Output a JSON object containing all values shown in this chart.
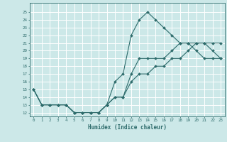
{
  "xlabel": "Humidex (Indice chaleur)",
  "bg_color": "#cce8e8",
  "grid_color": "#ffffff",
  "line_color": "#2d6b6b",
  "hours": [
    0,
    1,
    2,
    3,
    4,
    5,
    6,
    7,
    8,
    9,
    10,
    11,
    12,
    13,
    14,
    15,
    16,
    17,
    18,
    19,
    20,
    21,
    22,
    23
  ],
  "line1": [
    15,
    13,
    13,
    13,
    13,
    12,
    12,
    12,
    12,
    13,
    16,
    17,
    22,
    24,
    25,
    24,
    23,
    22,
    21,
    21,
    20,
    19,
    19,
    19
  ],
  "line2": [
    15,
    13,
    13,
    13,
    13,
    12,
    12,
    12,
    12,
    13,
    14,
    14,
    17,
    19,
    19,
    19,
    19,
    20,
    21,
    21,
    21,
    21,
    21,
    21
  ],
  "line3": [
    15,
    13,
    13,
    13,
    13,
    12,
    12,
    12,
    12,
    13,
    14,
    14,
    16,
    17,
    17,
    18,
    18,
    19,
    19,
    20,
    21,
    21,
    20,
    19
  ],
  "ylim": [
    11.5,
    26.2
  ],
  "xlim": [
    -0.5,
    23.5
  ],
  "yticks": [
    12,
    13,
    14,
    15,
    16,
    17,
    18,
    19,
    20,
    21,
    22,
    23,
    24,
    25
  ],
  "xticks": [
    0,
    1,
    2,
    3,
    4,
    5,
    6,
    7,
    8,
    9,
    10,
    11,
    12,
    13,
    14,
    15,
    16,
    17,
    18,
    19,
    20,
    21,
    22,
    23
  ]
}
